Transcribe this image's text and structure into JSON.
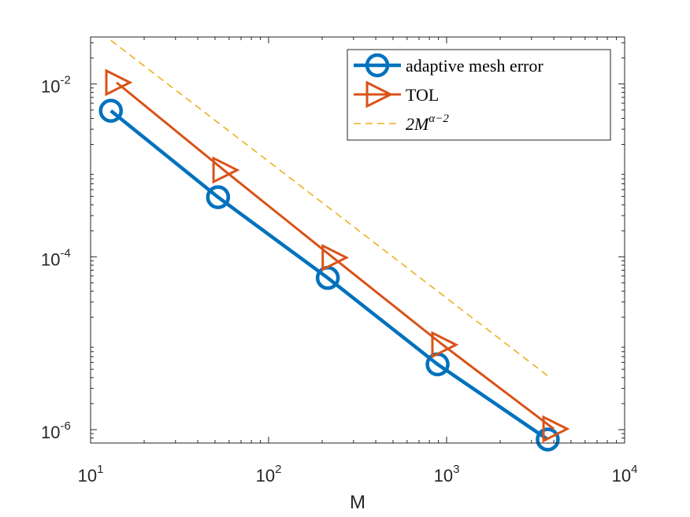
{
  "chart_data": {
    "type": "line",
    "xlabel": "M",
    "ylabel": "",
    "xscale": "log",
    "yscale": "log",
    "xlim": [
      10,
      10000
    ],
    "ylim": [
      7e-07,
      0.035
    ],
    "grid": false,
    "legend_position": "top-right",
    "x_ticks": [
      {
        "value": 10,
        "base": "10",
        "exp": "1"
      },
      {
        "value": 100,
        "base": "10",
        "exp": "2"
      },
      {
        "value": 1000,
        "base": "10",
        "exp": "3"
      },
      {
        "value": 10000,
        "base": "10",
        "exp": "4"
      }
    ],
    "y_ticks": [
      {
        "value": 1e-06,
        "base": "10",
        "exp": "-6"
      },
      {
        "value": 0.0001,
        "base": "10",
        "exp": "-4"
      },
      {
        "value": 0.01,
        "base": "10",
        "exp": "-2"
      }
    ],
    "series": [
      {
        "name": "adaptive mesh error",
        "color": "#0072BD",
        "marker": "circle",
        "line": "solid",
        "x": [
          13,
          52,
          215,
          890,
          3700
        ],
        "y": [
          0.0049,
          0.00049,
          5.7e-05,
          5.7e-06,
          7.7e-07
        ]
      },
      {
        "name": "TOL",
        "color": "#D95319",
        "marker": "triangle-right",
        "line": "solid",
        "x": [
          14,
          56,
          230,
          950,
          4000
        ],
        "y": [
          0.0104,
          0.00101,
          9.8e-05,
          9.6e-06,
          1.02e-06
        ]
      },
      {
        "name": "2M^{α-2}",
        "name_parts": {
          "base": "2M",
          "exp": "α−2"
        },
        "color": "#EDB120",
        "marker": "none",
        "line": "dashed",
        "x": [
          13,
          3700
        ],
        "y": [
          0.032,
          4.2e-06
        ]
      }
    ]
  }
}
